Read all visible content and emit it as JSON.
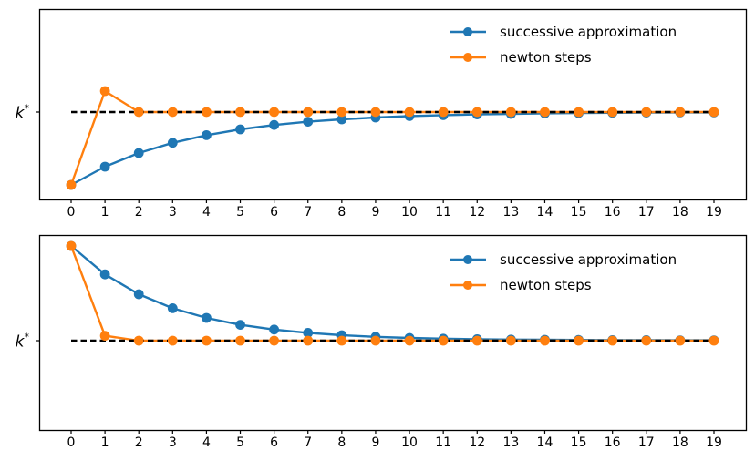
{
  "figure": {
    "background": "#ffffff",
    "kstar_line_color": "#000000",
    "spine_color": "#000000",
    "tick_label_color": "#000000"
  },
  "chart_data": [
    {
      "type": "line",
      "position": "top",
      "x": [
        0,
        1,
        2,
        3,
        4,
        5,
        6,
        7,
        8,
        9,
        10,
        11,
        12,
        13,
        14,
        15,
        16,
        17,
        18,
        19
      ],
      "xtick_labels": [
        "0",
        "1",
        "2",
        "3",
        "4",
        "5",
        "6",
        "7",
        "8",
        "9",
        "10",
        "11",
        "12",
        "13",
        "14",
        "15",
        "16",
        "17",
        "18",
        "19"
      ],
      "series": [
        {
          "name": "successive approximation",
          "color": "#1f77b4",
          "values": [
            0.6,
            0.7,
            0.775,
            0.831,
            0.873,
            0.905,
            0.929,
            0.947,
            0.96,
            0.97,
            0.978,
            0.983,
            0.987,
            0.99,
            0.993,
            0.995,
            0.996,
            0.997,
            0.998,
            0.998
          ]
        },
        {
          "name": "newton steps",
          "color": "#ff7f0e",
          "values": [
            0.6,
            1.115,
            1.0,
            1.0,
            1.0,
            1.0,
            1.0,
            1.0,
            1.0,
            1.0,
            1.0,
            1.0,
            1.0,
            1.0,
            1.0,
            1.0,
            1.0,
            1.0,
            1.0,
            1.0
          ]
        }
      ],
      "kstar_line": {
        "y": 1.0,
        "style": "dashed",
        "color": "#000000"
      },
      "ytick": {
        "value": 1.0,
        "label_base": "k",
        "label_sup": "*"
      },
      "ylim": [
        0.52,
        1.565
      ],
      "grid": false,
      "legend_position": "upper right inset, frameless"
    },
    {
      "type": "line",
      "position": "bottom",
      "x": [
        0,
        1,
        2,
        3,
        4,
        5,
        6,
        7,
        8,
        9,
        10,
        11,
        12,
        13,
        14,
        15,
        16,
        17,
        18,
        19
      ],
      "xtick_labels": [
        "0",
        "1",
        "2",
        "3",
        "4",
        "5",
        "6",
        "7",
        "8",
        "9",
        "10",
        "11",
        "12",
        "13",
        "14",
        "15",
        "16",
        "17",
        "18",
        "19"
      ],
      "series": [
        {
          "name": "successive approximation",
          "color": "#1f77b4",
          "values": [
            1.52,
            1.364,
            1.255,
            1.178,
            1.125,
            1.087,
            1.061,
            1.043,
            1.03,
            1.021,
            1.015,
            1.011,
            1.008,
            1.006,
            1.005,
            1.004,
            1.003,
            1.003,
            1.002,
            1.002
          ]
        },
        {
          "name": "newton steps",
          "color": "#ff7f0e",
          "values": [
            1.52,
            1.027,
            1.0,
            1.0,
            1.0,
            1.0,
            1.0,
            1.0,
            1.0,
            1.0,
            1.0,
            1.0,
            1.0,
            1.0,
            1.0,
            1.0,
            1.0,
            1.0,
            1.0,
            1.0
          ]
        }
      ],
      "kstar_line": {
        "y": 1.0,
        "style": "dashed",
        "color": "#000000"
      },
      "ytick": {
        "value": 1.0,
        "label_base": "k",
        "label_sup": "*"
      },
      "ylim": [
        0.51,
        1.58
      ],
      "grid": false,
      "legend_position": "upper right inset, frameless"
    }
  ]
}
